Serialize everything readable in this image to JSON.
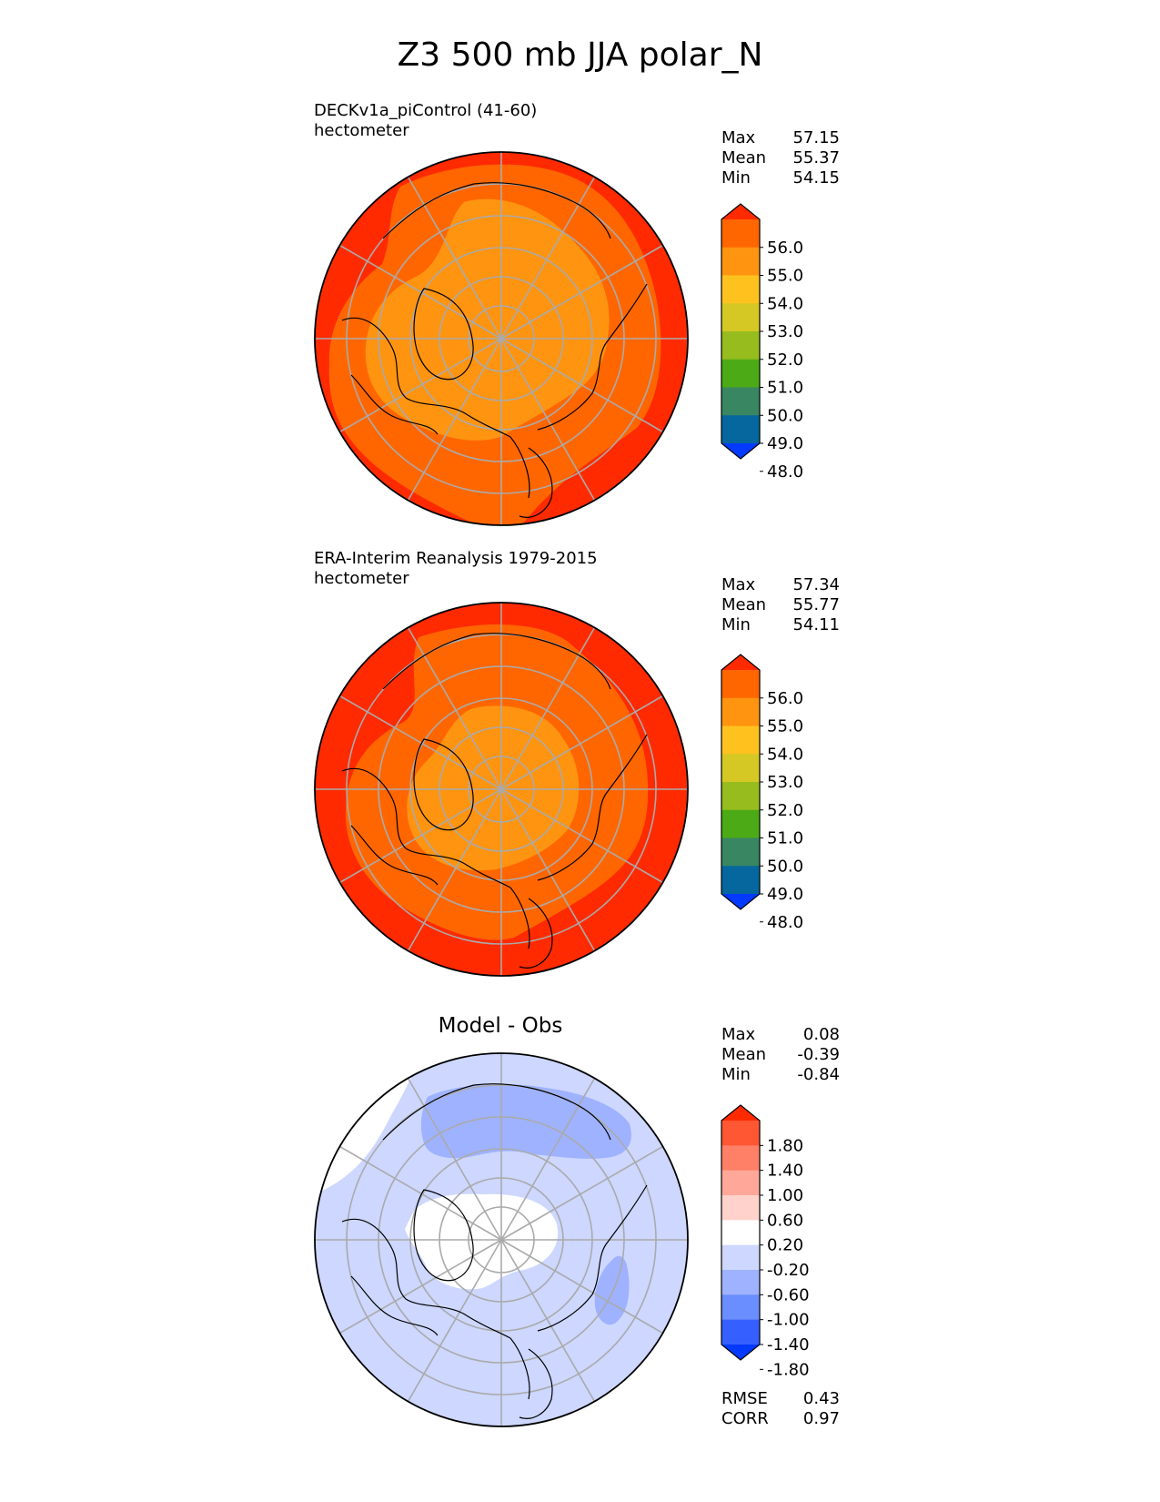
{
  "title": "Z3 500 mb JJA polar_N",
  "panels": [
    {
      "title": "DECKv1a_piControl (41-60)",
      "units": "hectometer",
      "stats": [
        {
          "label": "Max",
          "value": "57.15"
        },
        {
          "label": "Mean",
          "value": "55.37"
        },
        {
          "label": "Min",
          "value": "54.15"
        }
      ]
    },
    {
      "title": "ERA-Interim Reanalysis 1979-2015",
      "units": "hectometer",
      "stats": [
        {
          "label": "Max",
          "value": "57.34"
        },
        {
          "label": "Mean",
          "value": "55.77"
        },
        {
          "label": "Min",
          "value": "54.11"
        }
      ]
    },
    {
      "title": "Model - Obs",
      "stats": [
        {
          "label": "Max",
          "value": "0.08"
        },
        {
          "label": "Mean",
          "value": "-0.39"
        },
        {
          "label": "Min",
          "value": "-0.84"
        }
      ],
      "metrics": [
        {
          "label": "RMSE",
          "value": "0.43"
        },
        {
          "label": "CORR",
          "value": "0.97"
        }
      ]
    }
  ],
  "colors": {
    "c56": "#ff2a00",
    "c55": "#ff6600",
    "c54": "#ff9410",
    "c53": "#fec21f",
    "diff_light": "#cdd7ff",
    "diff_mid": "#9fb2ff",
    "diff_white": "#ffffff"
  },
  "chart_data": [
    {
      "type": "heatmap",
      "projection": "north polar stereographic",
      "colorbar": {
        "ticks": [
          "56.0",
          "55.0",
          "54.0",
          "53.0",
          "52.0",
          "51.0",
          "50.0",
          "49.0",
          "48.0"
        ],
        "colors": [
          "#ff2a00",
          "#ff6600",
          "#ff9410",
          "#fec21f",
          "#d5c824",
          "#97bc1e",
          "#4caa16",
          "#388662",
          "#05679d",
          "#0439ff"
        ],
        "extend": "both"
      }
    },
    {
      "type": "heatmap",
      "projection": "north polar stereographic",
      "colorbar": {
        "ticks": [
          "56.0",
          "55.0",
          "54.0",
          "53.0",
          "52.0",
          "51.0",
          "50.0",
          "49.0",
          "48.0"
        ],
        "colors": [
          "#ff2a00",
          "#ff6600",
          "#ff9410",
          "#fec21f",
          "#d5c824",
          "#97bc1e",
          "#4caa16",
          "#388662",
          "#05679d",
          "#0439ff"
        ],
        "extend": "both"
      }
    },
    {
      "type": "heatmap",
      "projection": "north polar stereographic",
      "colorbar": {
        "ticks": [
          "1.80",
          "1.40",
          "1.00",
          "0.60",
          "0.20",
          "-0.20",
          "-0.60",
          "-1.00",
          "-1.40",
          "-1.80"
        ],
        "colors": [
          "#ff2a00",
          "#ff5633",
          "#ff8066",
          "#ffa899",
          "#ffd3cc",
          "#ffffff",
          "#cdd7ff",
          "#9fb2ff",
          "#6a8dff",
          "#3560ff",
          "#0439ff"
        ],
        "extend": "both"
      }
    }
  ]
}
